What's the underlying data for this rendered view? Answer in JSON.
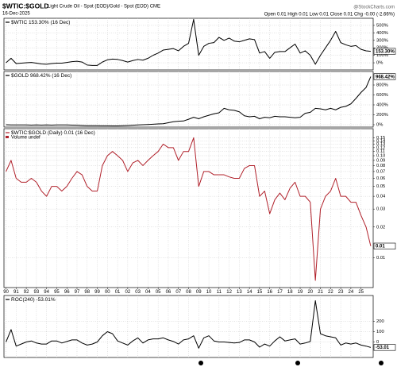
{
  "header": {
    "symbol": "$WTIC:$GOLD",
    "description": "Light Crude Oil - Spot (EOD)/Gold - Spot (EOD) CME",
    "date": "16-Dec-2025",
    "source": "@StockCharts.com",
    "quote": "Open 0.01 High 0.01 Low 0.01 Close 0.01 Chg -0.00 (-2.66%)"
  },
  "x_axis": {
    "xlim": [
      1989.8,
      2026.2
    ],
    "x": [
      1990,
      1990.5,
      1991,
      1991.5,
      1992,
      1992.5,
      1993,
      1993.5,
      1994,
      1994.5,
      1995,
      1995.5,
      1996,
      1996.5,
      1997,
      1997.5,
      1998,
      1998.5,
      1999,
      1999.5,
      2000,
      2000.5,
      2001,
      2001.5,
      2002,
      2002.5,
      2003,
      2003.5,
      2004,
      2004.5,
      2005,
      2005.5,
      2006,
      2006.5,
      2007,
      2007.5,
      2008,
      2008.5,
      2009,
      2009.5,
      2010,
      2010.5,
      2011,
      2011.5,
      2012,
      2012.5,
      2013,
      2013.5,
      2014,
      2014.5,
      2015,
      2015.5,
      2016,
      2016.5,
      2017,
      2017.5,
      2018,
      2018.5,
      2019,
      2019.5,
      2020,
      2020.5,
      2021,
      2021.5,
      2022,
      2022.5,
      2023,
      2023.5,
      2024,
      2024.5,
      2025,
      2025.5,
      2025.96
    ],
    "xticks": [
      {
        "value": 1990,
        "label": "90"
      },
      {
        "value": 1991,
        "label": "91"
      },
      {
        "value": 1992,
        "label": "92"
      },
      {
        "value": 1993,
        "label": "93"
      },
      {
        "value": 1994,
        "label": "94"
      },
      {
        "value": 1995,
        "label": "95"
      },
      {
        "value": 1996,
        "label": "96"
      },
      {
        "value": 1997,
        "label": "97"
      },
      {
        "value": 1998,
        "label": "98"
      },
      {
        "value": 1999,
        "label": "99"
      },
      {
        "value": 2000,
        "label": "00"
      },
      {
        "value": 2001,
        "label": "01"
      },
      {
        "value": 2002,
        "label": "02"
      },
      {
        "value": 2003,
        "label": "03"
      },
      {
        "value": 2004,
        "label": "04"
      },
      {
        "value": 2005,
        "label": "05"
      },
      {
        "value": 2006,
        "label": "06"
      },
      {
        "value": 2007,
        "label": "07"
      },
      {
        "value": 2008,
        "label": "08"
      },
      {
        "value": 2009,
        "label": "09"
      },
      {
        "value": 2010,
        "label": "10"
      },
      {
        "value": 2011,
        "label": "11"
      },
      {
        "value": 2012,
        "label": "12"
      },
      {
        "value": 2013,
        "label": "13"
      },
      {
        "value": 2014,
        "label": "14"
      },
      {
        "value": 2015,
        "label": "15"
      },
      {
        "value": 2016,
        "label": "16"
      },
      {
        "value": 2017,
        "label": "17"
      },
      {
        "value": 2018,
        "label": "18"
      },
      {
        "value": 2019,
        "label": "19"
      },
      {
        "value": 2020,
        "label": "20"
      },
      {
        "value": 2021,
        "label": "21"
      },
      {
        "value": 2022,
        "label": "22"
      },
      {
        "value": 2023,
        "label": "23"
      },
      {
        "value": 2024,
        "label": "24"
      },
      {
        "value": 2025,
        "label": "25"
      }
    ]
  },
  "chart_data": [
    {
      "type": "line",
      "title": "$WTIC 153.30% (16 Dec)",
      "color": "#000000",
      "grid": true,
      "ylim": [
        -95,
        595
      ],
      "yticks": [
        {
          "value": 500,
          "label": "500%"
        },
        {
          "value": 400,
          "label": "400%"
        },
        {
          "value": 300,
          "label": "300%"
        },
        {
          "value": 200,
          "label": "200%"
        },
        {
          "value": 100,
          "label": "100%"
        },
        {
          "value": 0,
          "label": "0%"
        }
      ],
      "values": [
        0,
        60,
        -10,
        -5,
        0,
        5,
        -5,
        -15,
        -20,
        -10,
        -5,
        -5,
        5,
        15,
        20,
        10,
        -30,
        -35,
        -35,
        10,
        40,
        50,
        45,
        30,
        10,
        30,
        45,
        35,
        60,
        100,
        130,
        170,
        180,
        190,
        160,
        220,
        260,
        580,
        100,
        220,
        260,
        270,
        340,
        300,
        330,
        290,
        280,
        300,
        320,
        310,
        130,
        150,
        60,
        140,
        150,
        150,
        200,
        250,
        130,
        160,
        100,
        -20,
        100,
        200,
        300,
        420,
        270,
        240,
        220,
        230,
        180,
        160,
        153.3
      ],
      "last": {
        "value": 153.3,
        "label": "153.30%"
      }
    },
    {
      "type": "line",
      "title": "$GOLD 968.42% (16 Dec)",
      "color": "#000000",
      "grid": true,
      "ylim": [
        -48,
        1072
      ],
      "yticks": [
        {
          "value": 800,
          "label": "800%"
        },
        {
          "value": 600,
          "label": "600%"
        },
        {
          "value": 400,
          "label": "400%"
        },
        {
          "value": 200,
          "label": "200%"
        },
        {
          "value": 0,
          "label": "0%"
        }
      ],
      "values": [
        0,
        -5,
        -5,
        -5,
        -5,
        -8,
        -5,
        -8,
        -5,
        -8,
        -5,
        -5,
        -5,
        -8,
        -10,
        -15,
        -20,
        -20,
        -20,
        -22,
        -22,
        -25,
        -25,
        -20,
        -15,
        -10,
        -5,
        0,
        5,
        10,
        15,
        20,
        40,
        60,
        70,
        75,
        110,
        150,
        120,
        160,
        190,
        220,
        240,
        330,
        300,
        290,
        260,
        180,
        160,
        170,
        120,
        150,
        140,
        170,
        160,
        160,
        150,
        140,
        150,
        230,
        250,
        330,
        320,
        300,
        330,
        300,
        350,
        370,
        420,
        530,
        650,
        750,
        968.42
      ],
      "last": {
        "value": 968.42,
        "label": "968.42%"
      }
    },
    {
      "type": "line",
      "title": "$WTIC:$GOLD (Daily) 0.01 (16 Dec)",
      "legend": "Volume undef",
      "color": "#b0202a",
      "grid": true,
      "log": true,
      "ylim": [
        0.0051,
        0.184
      ],
      "yticks": [
        0.15,
        0.14,
        0.13,
        0.12,
        0.11,
        {
          "value": 0.1,
          "label": "0.10"
        },
        0.09,
        0.08,
        0.07,
        0.06,
        0.05,
        0.04,
        0.03,
        0.02,
        0.01
      ],
      "values": [
        0.07,
        0.09,
        0.06,
        0.055,
        0.055,
        0.06,
        0.055,
        0.045,
        0.04,
        0.05,
        0.05,
        0.045,
        0.05,
        0.06,
        0.07,
        0.065,
        0.05,
        0.045,
        0.045,
        0.08,
        0.1,
        0.11,
        0.1,
        0.09,
        0.07,
        0.085,
        0.09,
        0.08,
        0.09,
        0.1,
        0.11,
        0.13,
        0.12,
        0.12,
        0.09,
        0.11,
        0.11,
        0.15,
        0.05,
        0.07,
        0.07,
        0.065,
        0.065,
        0.065,
        0.062,
        0.06,
        0.06,
        0.075,
        0.08,
        0.08,
        0.04,
        0.045,
        0.027,
        0.037,
        0.043,
        0.037,
        0.048,
        0.055,
        0.04,
        0.04,
        0.035,
        0.006,
        0.03,
        0.04,
        0.045,
        0.06,
        0.04,
        0.04,
        0.035,
        0.035,
        0.026,
        0.02,
        0.013
      ],
      "last": {
        "value": 0.013,
        "label": "0.01"
      }
    },
    {
      "type": "line",
      "title": "ROC(240) -53.01%",
      "color": "#000000",
      "grid": true,
      "ylim": [
        -150,
        450
      ],
      "yticks": [
        200,
        100,
        0
      ],
      "values": [
        0,
        120,
        -40,
        -20,
        0,
        10,
        -10,
        -20,
        -20,
        10,
        10,
        -10,
        5,
        20,
        20,
        -10,
        -30,
        -20,
        0,
        60,
        100,
        80,
        10,
        -10,
        -30,
        10,
        40,
        -10,
        20,
        30,
        30,
        40,
        20,
        5,
        -20,
        20,
        30,
        60,
        -60,
        40,
        60,
        10,
        0,
        0,
        -5,
        -10,
        -5,
        20,
        20,
        0,
        -50,
        -20,
        -40,
        10,
        50,
        10,
        20,
        30,
        -20,
        -10,
        5,
        400,
        80,
        60,
        50,
        40,
        -30,
        -10,
        -20,
        -10,
        -30,
        -40,
        -53.01
      ],
      "last": {
        "value": -53.01,
        "label": "-53.01"
      }
    }
  ]
}
